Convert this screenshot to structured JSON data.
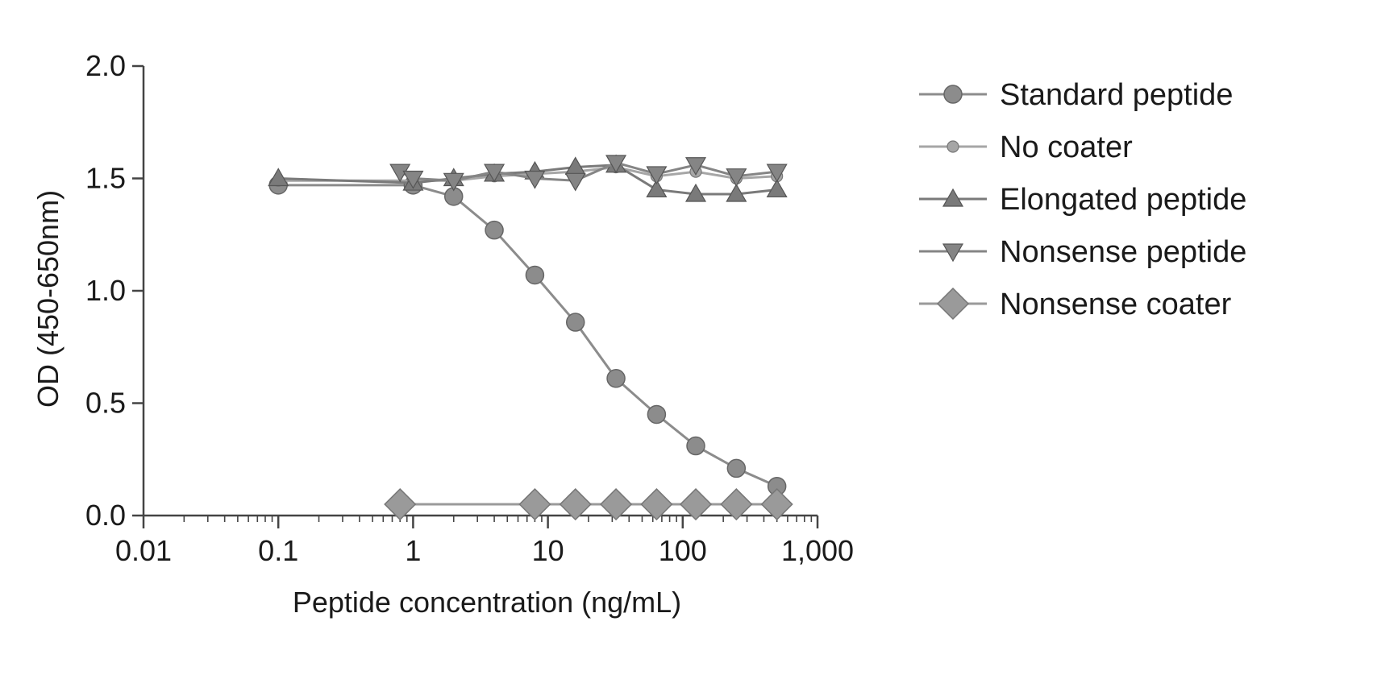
{
  "chart_data": {
    "type": "line",
    "title": "",
    "xlabel": "Peptide concentration (ng/mL)",
    "ylabel": "OD (450-650nm)",
    "xscale": "log",
    "xlim": [
      0.01,
      1000
    ],
    "ylim": [
      0,
      2.0
    ],
    "xticks": [
      {
        "value": 0.01,
        "label": "0.01"
      },
      {
        "value": 0.1,
        "label": "0.1"
      },
      {
        "value": 1,
        "label": "1"
      },
      {
        "value": 10,
        "label": "10"
      },
      {
        "value": 100,
        "label": "100"
      },
      {
        "value": 1000,
        "label": "1,000"
      }
    ],
    "yticks": [
      {
        "value": 0.0,
        "label": "0.0"
      },
      {
        "value": 0.5,
        "label": "0.5"
      },
      {
        "value": 1.0,
        "label": "1.0"
      },
      {
        "value": 1.5,
        "label": "1.5"
      },
      {
        "value": 2.0,
        "label": "2.0"
      }
    ],
    "grid": false,
    "legend_position": "right",
    "series": [
      {
        "name": "Standard peptide",
        "marker": "circle",
        "color": "#8c8c8c",
        "x": [
          0.1,
          1,
          2,
          4,
          8,
          16,
          32,
          64,
          125,
          250,
          500
        ],
        "y": [
          1.47,
          1.47,
          1.42,
          1.27,
          1.07,
          0.86,
          0.61,
          0.45,
          0.31,
          0.21,
          0.13
        ]
      },
      {
        "name": "No coater",
        "marker": "circle-small",
        "color": "#a6a6a6",
        "x": [
          0.1,
          1,
          2,
          4,
          8,
          16,
          32,
          64,
          125,
          250,
          500
        ],
        "y": [
          1.49,
          1.49,
          1.49,
          1.51,
          1.52,
          1.53,
          1.55,
          1.51,
          1.53,
          1.5,
          1.51
        ]
      },
      {
        "name": "Elongated peptide",
        "marker": "triangle-up",
        "color": "#7a7a7a",
        "x": [
          0.1,
          1,
          2,
          4,
          8,
          16,
          32,
          64,
          125,
          250,
          500
        ],
        "y": [
          1.5,
          1.48,
          1.5,
          1.52,
          1.53,
          1.55,
          1.56,
          1.45,
          1.43,
          1.43,
          1.45
        ]
      },
      {
        "name": "Nonsense peptide",
        "marker": "triangle-down",
        "color": "#858585",
        "x": [
          0.8,
          1,
          2,
          4,
          8,
          16,
          32,
          64,
          125,
          250,
          500
        ],
        "y": [
          1.53,
          1.5,
          1.49,
          1.53,
          1.5,
          1.49,
          1.57,
          1.52,
          1.56,
          1.51,
          1.53
        ]
      },
      {
        "name": "Nonsense coater",
        "marker": "diamond",
        "color": "#9a9a9a",
        "x": [
          0.8,
          8,
          16,
          32,
          64,
          125,
          250,
          500
        ],
        "y": [
          0.05,
          0.05,
          0.05,
          0.05,
          0.05,
          0.05,
          0.05,
          0.05
        ]
      }
    ]
  }
}
